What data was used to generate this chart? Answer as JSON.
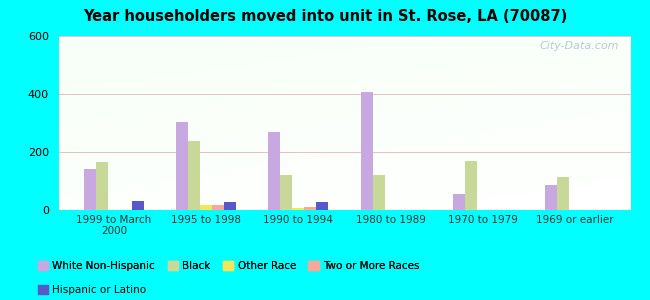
{
  "title": "Year householders moved into unit in St. Rose, LA (70087)",
  "categories": [
    "1999 to March\n2000",
    "1995 to 1998",
    "1990 to 1994",
    "1980 to 1989",
    "1970 to 1979",
    "1969 or earlier"
  ],
  "series": {
    "White Non-Hispanic": [
      140,
      305,
      270,
      408,
      55,
      85
    ],
    "Black": [
      165,
      238,
      120,
      120,
      170,
      115
    ],
    "Other Race": [
      0,
      18,
      8,
      0,
      0,
      0
    ],
    "Two or More Races": [
      0,
      18,
      12,
      0,
      0,
      0
    ],
    "Hispanic or Latino": [
      30,
      28,
      28,
      0,
      0,
      0
    ]
  },
  "colors": {
    "White Non-Hispanic": "#c8a8e0",
    "Black": "#c8d898",
    "Other Race": "#f0e858",
    "Two or More Races": "#f8a898",
    "Hispanic or Latino": "#5858c8"
  },
  "ylim": [
    0,
    600
  ],
  "yticks": [
    0,
    200,
    400,
    600
  ],
  "outer_background": "#00ffff",
  "watermark": "City-Data.com"
}
